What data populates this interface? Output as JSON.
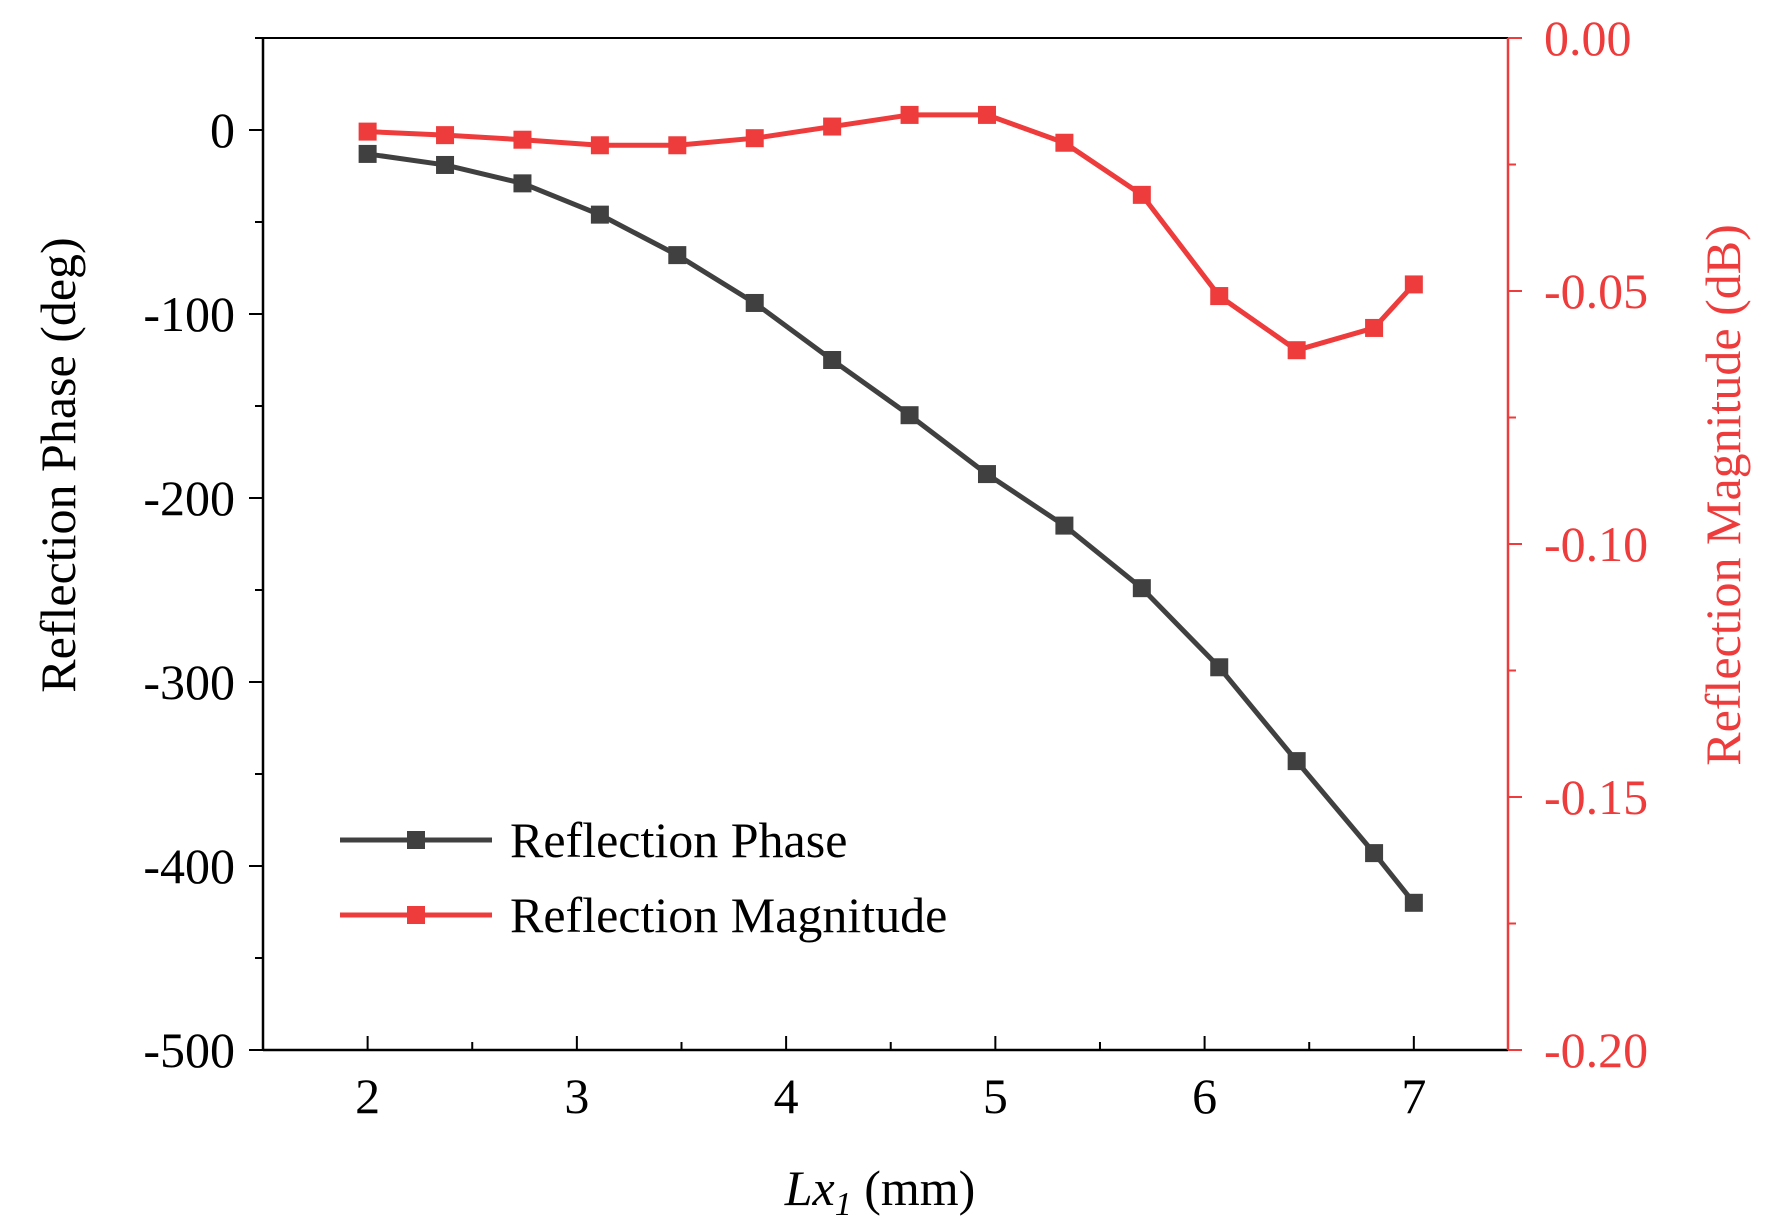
{
  "chart_data": {
    "type": "line",
    "xlabel": {
      "symbol": "Lx",
      "subscript": "1",
      "unit": " (mm)"
    },
    "ylabel_left": "Reflection Phase (deg)",
    "ylabel_right": "Reflection Magnitude (dB)",
    "xlim": [
      1.5,
      7.45
    ],
    "ylim_left": [
      -500,
      50
    ],
    "ylim_right": [
      -0.2,
      0
    ],
    "x_ticks": [
      "2",
      "3",
      "4",
      "5",
      "6",
      "7"
    ],
    "y_left_ticks": [
      "0",
      "-100",
      "-200",
      "-300",
      "-400",
      "-500"
    ],
    "y_right_ticks": [
      "0.00",
      "-0.05",
      "-0.10",
      "-0.15",
      "-0.20"
    ],
    "grid": false,
    "legend_position": "bottom-left",
    "x": [
      2.0,
      2.37,
      2.74,
      3.11,
      3.48,
      3.85,
      4.22,
      4.59,
      4.96,
      5.33,
      5.7,
      6.07,
      6.44,
      6.81,
      7.0
    ],
    "series": [
      {
        "name": "Reflection Phase",
        "axis": "left",
        "color": "#404040",
        "values": [
          -13,
          -19,
          -29,
          -46,
          -68,
          -94,
          -125,
          -155,
          -187,
          -215,
          -249,
          -292,
          -343,
          -393,
          -420
        ]
      },
      {
        "name": "Reflection Magnitude",
        "axis": "right",
        "color": "#ee3b3b",
        "values": [
          -0.0185,
          -0.0192,
          -0.0201,
          -0.0212,
          -0.0212,
          -0.0198,
          -0.0175,
          -0.0152,
          -0.0152,
          -0.0207,
          -0.031,
          -0.051,
          -0.0617,
          -0.0573,
          -0.0487
        ]
      }
    ]
  }
}
